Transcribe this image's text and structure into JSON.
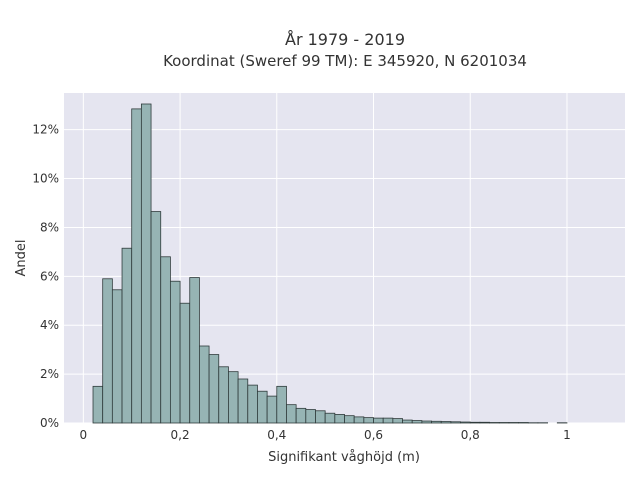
{
  "chart_data": {
    "type": "bar",
    "title_line1": "År 1979 - 2019",
    "title_line2": "Koordinat (Sweref 99 TM): E 345920, N 6201034",
    "xlabel": "Signifikant våghöjd (m)",
    "ylabel": "Andel",
    "xlim": [
      -0.04,
      1.12
    ],
    "ylim": [
      0,
      13.5
    ],
    "x_ticks": [
      {
        "value": 0,
        "label": "0"
      },
      {
        "value": 0.2,
        "label": "0,2"
      },
      {
        "value": 0.4,
        "label": "0,4"
      },
      {
        "value": 0.6,
        "label": "0,6"
      },
      {
        "value": 0.8,
        "label": "0,8"
      },
      {
        "value": 1.0,
        "label": "1"
      }
    ],
    "y_ticks": [
      {
        "value": 0,
        "label": "0%"
      },
      {
        "value": 2,
        "label": "2%"
      },
      {
        "value": 4,
        "label": "4%"
      },
      {
        "value": 6,
        "label": "6%"
      },
      {
        "value": 8,
        "label": "8%"
      },
      {
        "value": 10,
        "label": "10%"
      },
      {
        "value": 12,
        "label": "12%"
      }
    ],
    "bin_width": 0.02,
    "bin_starts": [
      0.02,
      0.04,
      0.06,
      0.08,
      0.1,
      0.12,
      0.14,
      0.16,
      0.18,
      0.2,
      0.22,
      0.24,
      0.26,
      0.28,
      0.3,
      0.32,
      0.34,
      0.36,
      0.38,
      0.4,
      0.42,
      0.44,
      0.46,
      0.48,
      0.5,
      0.52,
      0.54,
      0.56,
      0.58,
      0.6,
      0.62,
      0.64,
      0.66,
      0.68,
      0.7,
      0.72,
      0.74,
      0.76,
      0.78,
      0.8,
      0.82,
      0.84,
      0.86,
      0.88,
      0.9,
      0.92,
      0.94,
      0.96,
      0.98,
      1.0
    ],
    "values": [
      1.5,
      5.9,
      5.45,
      7.15,
      12.85,
      13.05,
      8.65,
      6.8,
      5.8,
      4.9,
      5.95,
      3.15,
      2.8,
      2.3,
      2.1,
      1.8,
      1.55,
      1.3,
      1.1,
      1.5,
      0.75,
      0.6,
      0.55,
      0.5,
      0.4,
      0.35,
      0.3,
      0.25,
      0.22,
      0.2,
      0.2,
      0.18,
      0.12,
      0.1,
      0.08,
      0.07,
      0.06,
      0.05,
      0.04,
      0.03,
      0.03,
      0.02,
      0.02,
      0.02,
      0.02,
      0.01,
      0.01,
      0,
      0.01,
      0
    ],
    "colors": {
      "plot_bg": "#e5e5f0",
      "grid": "#ffffff",
      "bar_fill": "#96b4b4",
      "bar_stroke": "#2f3b3b"
    },
    "grid": true
  }
}
